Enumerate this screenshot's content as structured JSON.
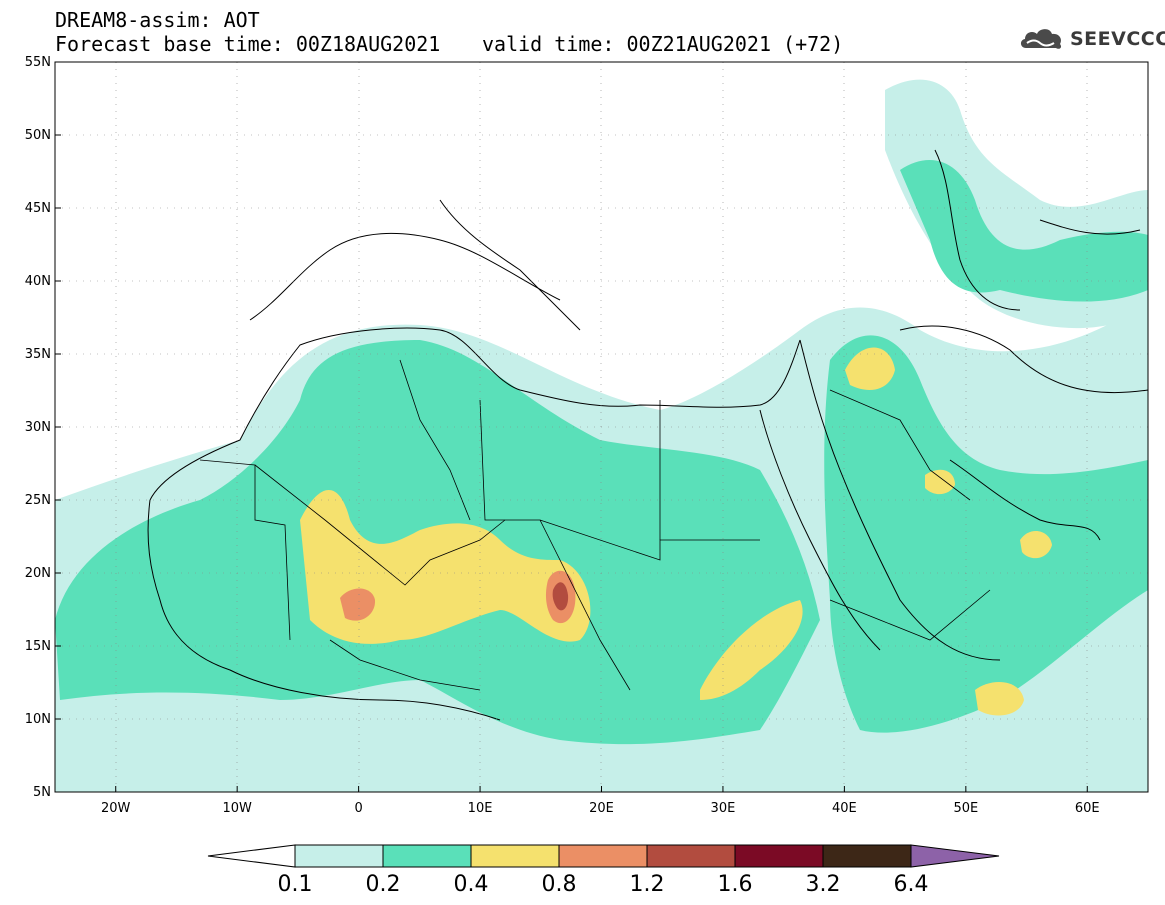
{
  "header": {
    "title": "DREAM8-assim: AOT",
    "base_time": "Forecast base time: 00Z18AUG2021",
    "valid_time": "valid time: 00Z21AUG2021 (+72)",
    "logo_text": "SEEVCCC"
  },
  "map": {
    "lon_range": [
      -25,
      65
    ],
    "lat_range": [
      5,
      55
    ],
    "lon_ticks": [
      "20W",
      "10W",
      "0",
      "10E",
      "20E",
      "30E",
      "40E",
      "50E",
      "60E"
    ],
    "lat_ticks": [
      "55N",
      "50N",
      "45N",
      "40N",
      "35N",
      "30N",
      "25N",
      "20N",
      "15N",
      "10N",
      "5N"
    ],
    "grid": "dotted"
  },
  "colorbar": {
    "labels": [
      "0.1",
      "0.2",
      "0.4",
      "0.8",
      "1.2",
      "1.6",
      "3.2",
      "6.4"
    ],
    "colors": [
      "#c6efe9",
      "#5ae0b9",
      "#f5e16e",
      "#eb8f65",
      "#b24c3f",
      "#7b0a25",
      "#3d2717",
      "#8d62a8"
    ]
  }
}
